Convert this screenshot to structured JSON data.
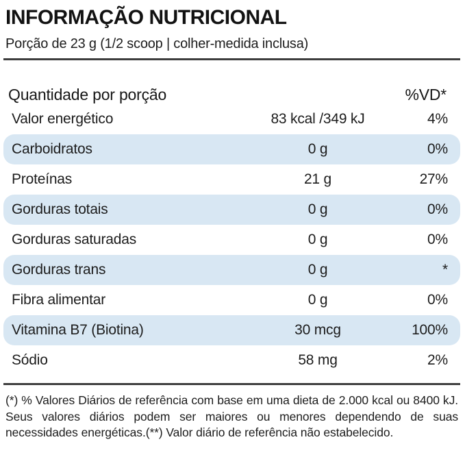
{
  "label": {
    "title": "INFORMAÇÃO NUTRICIONAL",
    "serving": "Porção de 23 g (1/2 scoop | colher-medida inclusa)",
    "header": {
      "quantity": "Quantidade por porção",
      "dv": "%VD*"
    },
    "rows": [
      {
        "name": "Valor energético",
        "amount": "83 kcal /349 kJ",
        "dv": "4%",
        "highlight": false
      },
      {
        "name": "Carboidratos",
        "amount": "0 g",
        "dv": "0%",
        "highlight": true
      },
      {
        "name": "Proteínas",
        "amount": "21 g",
        "dv": "27%",
        "highlight": false
      },
      {
        "name": "Gorduras totais",
        "amount": "0 g",
        "dv": "0%",
        "highlight": true
      },
      {
        "name": "Gorduras saturadas",
        "amount": "0 g",
        "dv": "0%",
        "highlight": false
      },
      {
        "name": "Gorduras trans",
        "amount": "0 g",
        "dv": "*",
        "highlight": true
      },
      {
        "name": "Fibra alimentar",
        "amount": "0 g",
        "dv": "0%",
        "highlight": false
      },
      {
        "name": "Vitamina B7 (Biotina)",
        "amount": "30 mcg",
        "dv": "100%",
        "highlight": true
      },
      {
        "name": "Sódio",
        "amount": "58 mg",
        "dv": "2%",
        "highlight": false
      }
    ],
    "footnote": "(*) % Valores Diários de referência com base em uma dieta de 2.000 kcal ou 8400 kJ. Seus valores diários podem ser maiores ou menores dependendo de suas necessidades energéticas.(**) Valor diário de referência não estabelecido.",
    "colors": {
      "highlight_row": "#d8e7f3",
      "text": "#1c1c1c",
      "rule": "#3d3d3d"
    }
  }
}
